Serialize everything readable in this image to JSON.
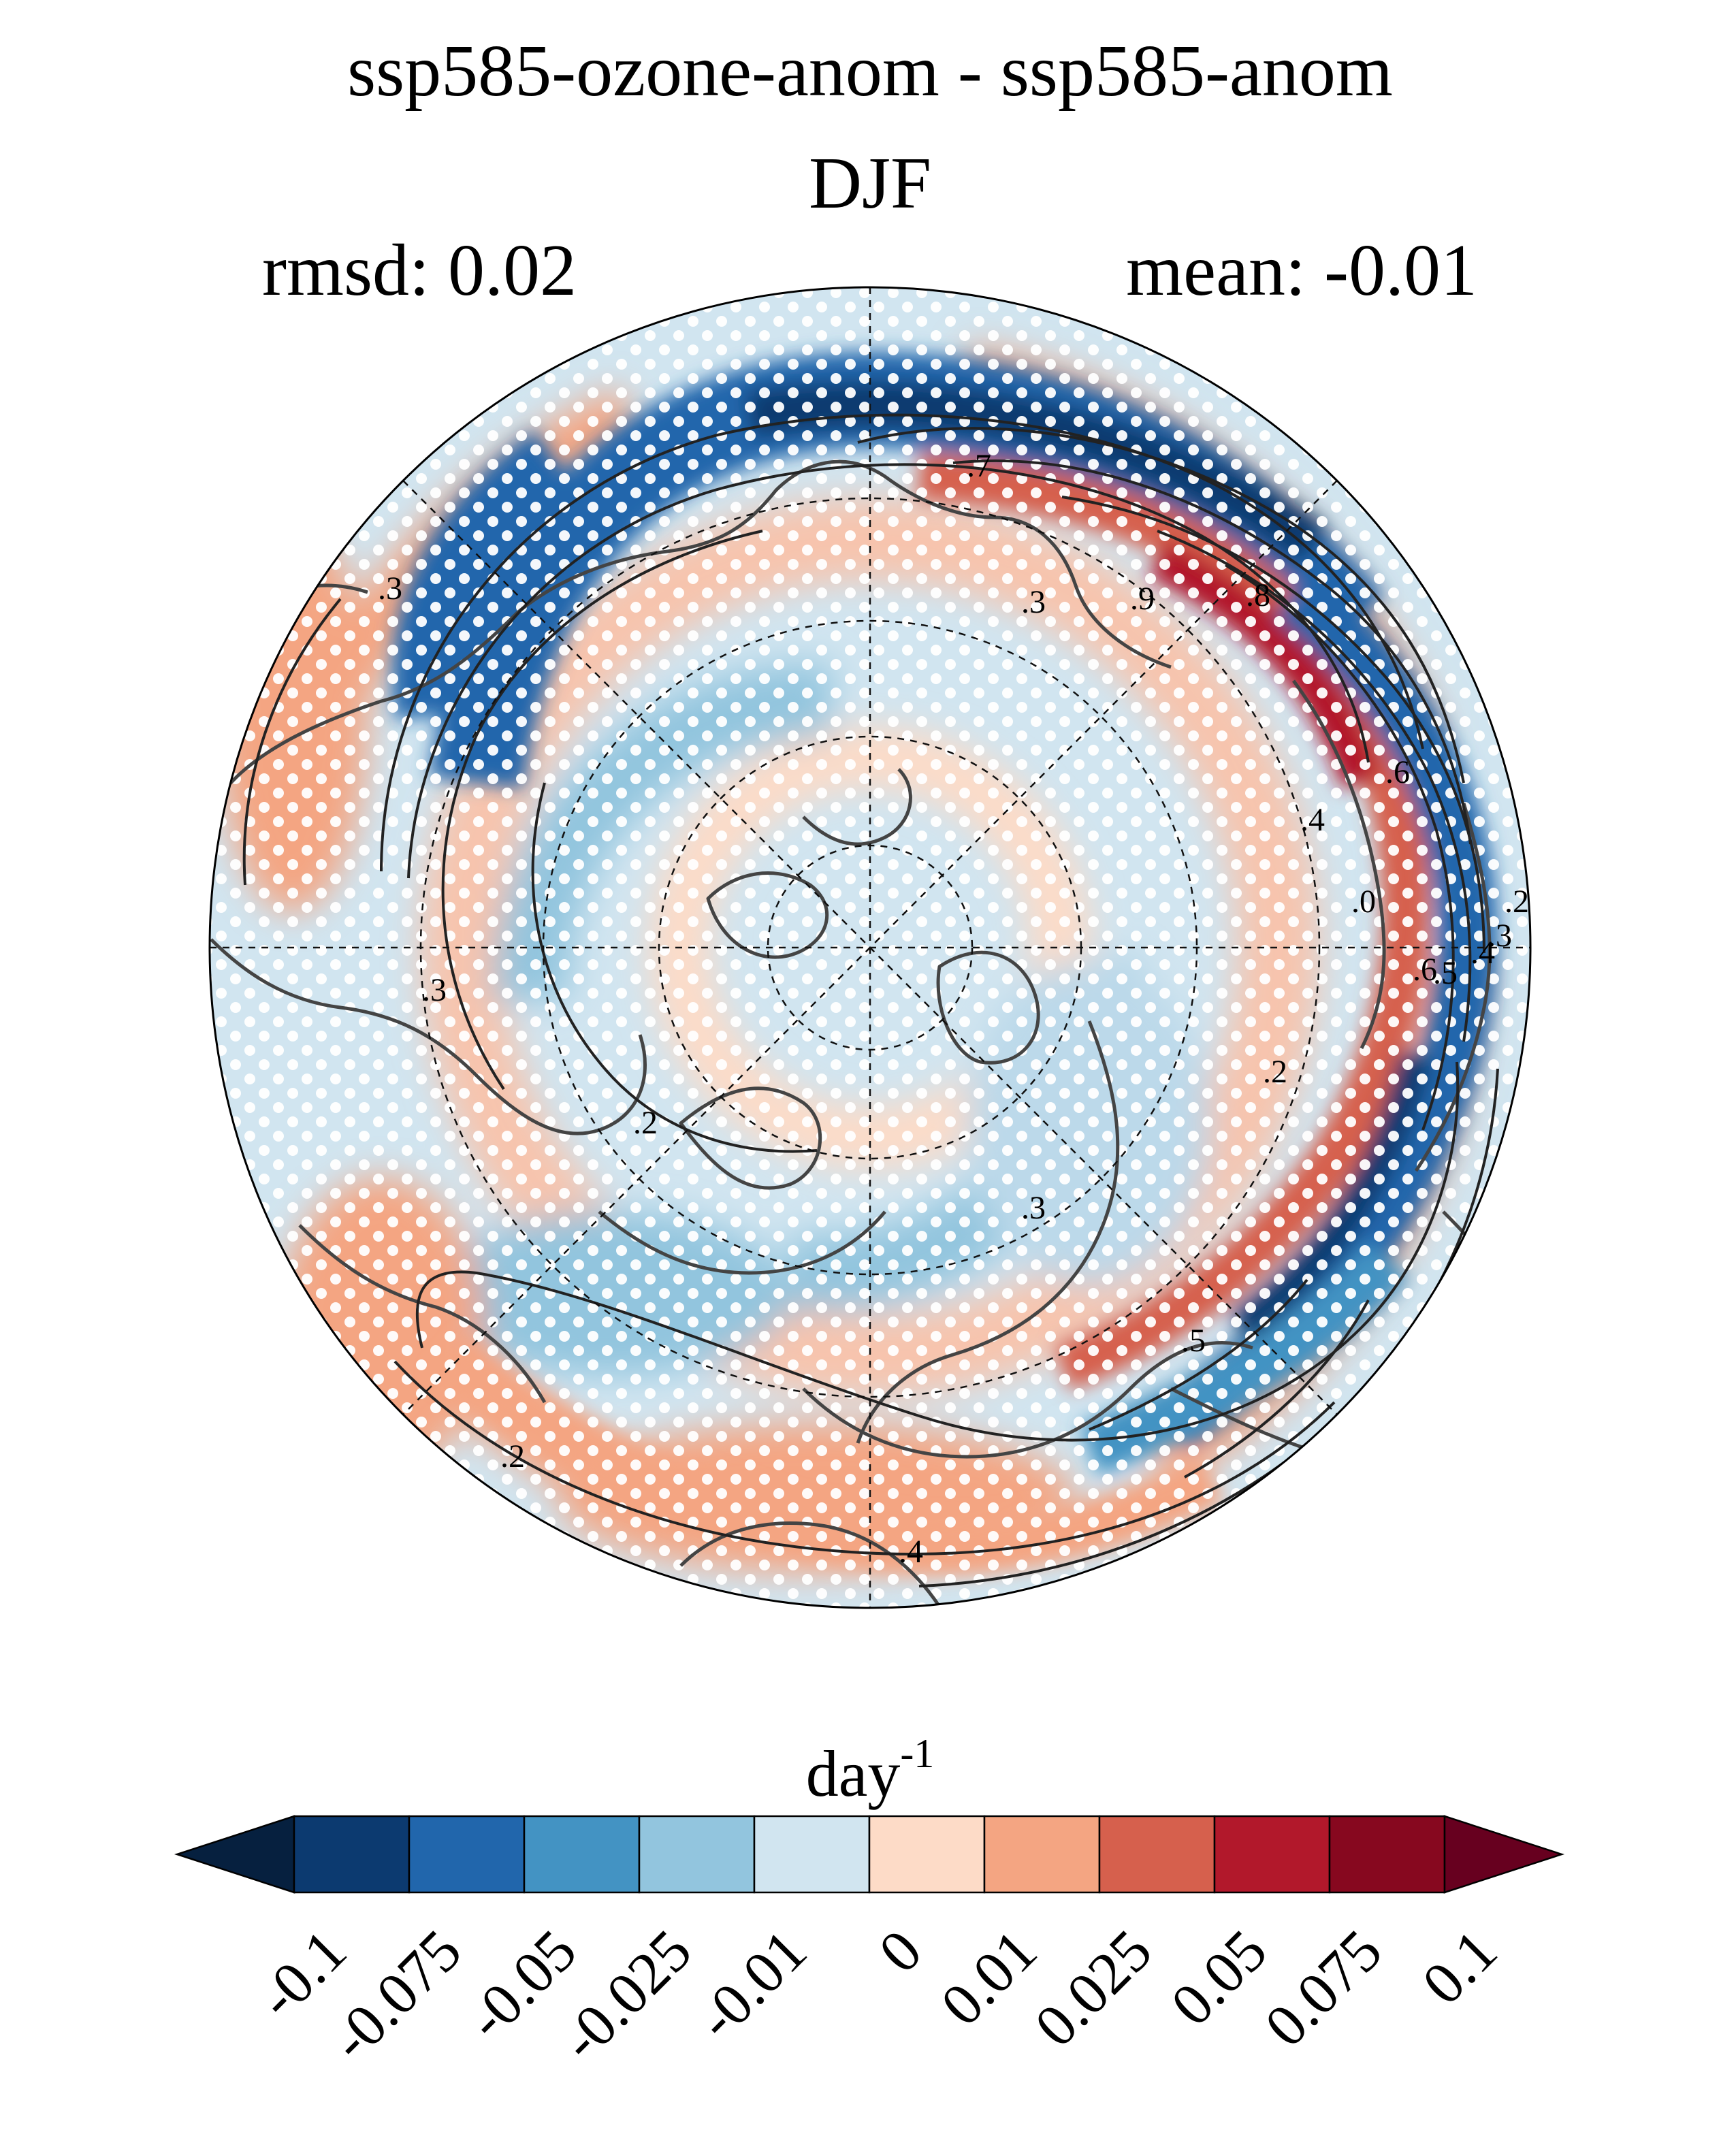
{
  "figure": {
    "title": "ssp585-ozone-anom - ssp585-anom",
    "subtitle": "DJF",
    "rmsd_text": "rmsd: 0.02",
    "mean_text": "mean: -0.01"
  },
  "map": {
    "projection": "north-polar-stereographic",
    "shading": "filled anomaly field with stippling (white dots) for non-significant regions",
    "contour_labels": [
      ".7",
      ".8",
      ".3",
      ".3",
      ".9",
      ".3",
      ".6",
      ".4",
      ".0",
      ".2",
      ".3",
      ".4",
      ".5",
      ".6",
      ".2",
      ".5",
      ".2",
      ".2",
      ".4",
      ".3"
    ]
  },
  "colorbar": {
    "unit_base": "day",
    "unit_exponent": "-1",
    "tick_labels": [
      "-0.1",
      "-0.075",
      "-0.05",
      "-0.025",
      "-0.01",
      "0",
      "0.01",
      "0.025",
      "0.05",
      "0.075",
      "0.1"
    ],
    "colors": [
      "#06203f",
      "#0c3a70",
      "#2166ac",
      "#4393c3",
      "#92c5de",
      "#d1e5f0",
      "#fddbc7",
      "#f4a582",
      "#d6604d",
      "#b2182b",
      "#87081f",
      "#67001f"
    ],
    "extend": "both"
  }
}
